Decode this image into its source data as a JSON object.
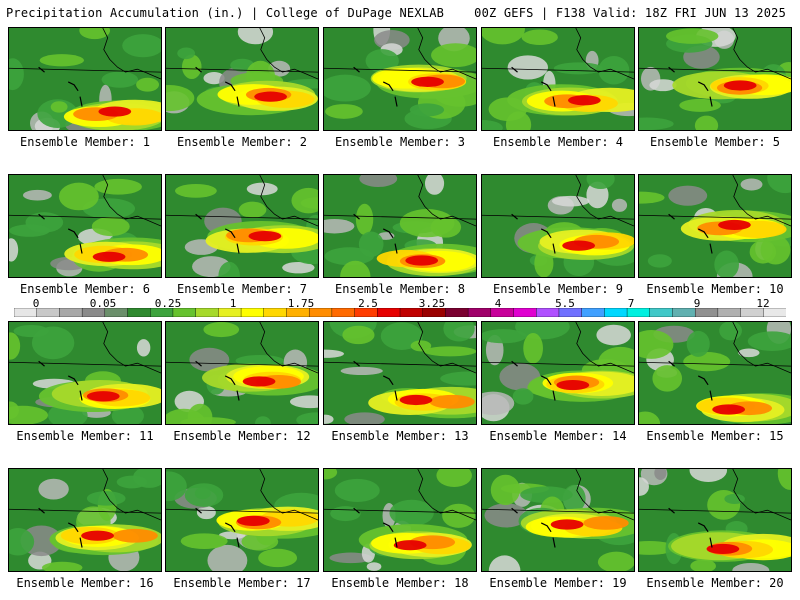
{
  "header": {
    "left_title": "Precipitation Accumulation (in.) | College of DuPage NEXLAB",
    "right_title": "00Z GEFS | F138 Valid: 18Z FRI JUN 13 2025"
  },
  "panels": [
    {
      "label": "Ensemble Member: 1"
    },
    {
      "label": "Ensemble Member: 2"
    },
    {
      "label": "Ensemble Member: 3"
    },
    {
      "label": "Ensemble Member: 4"
    },
    {
      "label": "Ensemble Member: 5"
    },
    {
      "label": "Ensemble Member: 6"
    },
    {
      "label": "Ensemble Member: 7"
    },
    {
      "label": "Ensemble Member: 8"
    },
    {
      "label": "Ensemble Member: 9"
    },
    {
      "label": "Ensemble Member: 10"
    },
    {
      "label": "Ensemble Member: 11"
    },
    {
      "label": "Ensemble Member: 12"
    },
    {
      "label": "Ensemble Member: 13"
    },
    {
      "label": "Ensemble Member: 14"
    },
    {
      "label": "Ensemble Member: 15"
    },
    {
      "label": "Ensemble Member: 16"
    },
    {
      "label": "Ensemble Member: 17"
    },
    {
      "label": "Ensemble Member: 18"
    },
    {
      "label": "Ensemble Member: 19"
    },
    {
      "label": "Ensemble Member: 20"
    }
  ],
  "colorbar": {
    "tick_labels": [
      "0",
      "0.05",
      "0.25",
      "1",
      "1.75",
      "2.5",
      "3.25",
      "4",
      "5.5",
      "7",
      "9",
      "12"
    ],
    "colors": [
      "#e6e6e6",
      "#c8c8c8",
      "#a8a8a8",
      "#8a8a8a",
      "#6b8f6b",
      "#2f8a2f",
      "#3da33d",
      "#66c22e",
      "#a6d92a",
      "#e6f022",
      "#ffff00",
      "#ffd700",
      "#ffb000",
      "#ff8c00",
      "#ff6a00",
      "#ff3c00",
      "#e60000",
      "#c00000",
      "#9a0000",
      "#7a0030",
      "#a0006a",
      "#c8009a",
      "#e000d0",
      "#b050ff",
      "#7070ff",
      "#40a0ff",
      "#00d8ff",
      "#00f0e0",
      "#40c8c8",
      "#60b0b0",
      "#909090",
      "#b0b0b0",
      "#d0d0d0",
      "#e8e8e8"
    ]
  }
}
